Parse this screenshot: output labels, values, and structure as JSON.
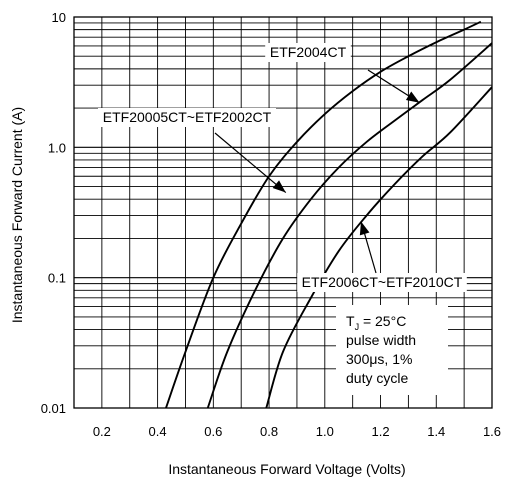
{
  "chart_data": {
    "type": "line",
    "title": "",
    "xlabel": "Instantaneous Forward Voltage (Volts)",
    "ylabel": "Instantaneous Forward Current (A)",
    "xlim": [
      0.1,
      1.6
    ],
    "ylim": [
      0.01,
      10
    ],
    "yscale": "log",
    "grid": true,
    "x_ticks": [
      0.2,
      0.4,
      0.6,
      0.8,
      1.0,
      1.2,
      1.4,
      1.6
    ],
    "x_tick_labels": [
      "0.2",
      "0.4",
      "0.6",
      "0.8",
      "1.0",
      "1.2",
      "1.4",
      "1.6"
    ],
    "y_ticks": [
      0.01,
      0.1,
      1,
      10
    ],
    "y_tick_labels": [
      "0.01",
      "0.1",
      "1.0",
      "10"
    ],
    "series": [
      {
        "name": "ETF20005CT~ETF2002CT",
        "points": [
          [
            0.43,
            0.01
          ],
          [
            0.5,
            0.027
          ],
          [
            0.6,
            0.1
          ],
          [
            0.7,
            0.26
          ],
          [
            0.8,
            0.6
          ],
          [
            0.9,
            1.1
          ],
          [
            1.0,
            1.8
          ],
          [
            1.1,
            2.7
          ],
          [
            1.2,
            3.8
          ],
          [
            1.3,
            5.0
          ],
          [
            1.4,
            6.4
          ],
          [
            1.5,
            8.0
          ],
          [
            1.56,
            9.2
          ]
        ]
      },
      {
        "name": "ETF2004CT",
        "points": [
          [
            0.58,
            0.01
          ],
          [
            0.65,
            0.027
          ],
          [
            0.75,
            0.08
          ],
          [
            0.85,
            0.2
          ],
          [
            0.95,
            0.4
          ],
          [
            1.05,
            0.7
          ],
          [
            1.15,
            1.1
          ],
          [
            1.25,
            1.6
          ],
          [
            1.35,
            2.3
          ],
          [
            1.45,
            3.3
          ],
          [
            1.6,
            6.3
          ]
        ]
      },
      {
        "name": "ETF2006CT~ETF2010CT",
        "points": [
          [
            0.79,
            0.01
          ],
          [
            0.85,
            0.027
          ],
          [
            0.95,
            0.07
          ],
          [
            1.05,
            0.16
          ],
          [
            1.15,
            0.3
          ],
          [
            1.25,
            0.52
          ],
          [
            1.35,
            0.85
          ],
          [
            1.45,
            1.3
          ],
          [
            1.6,
            2.9
          ]
        ]
      }
    ],
    "annotations": [
      {
        "text": "ETF2004CT",
        "series": "ETF2004CT",
        "arrow_to": [
          1.34,
          2.2
        ]
      },
      {
        "text": "ETF20005CT~ETF2002CT",
        "series": "ETF20005CT~ETF2002CT",
        "arrow_to": [
          0.86,
          0.45
        ]
      },
      {
        "text": "ETF2006CT~ETF2010CT",
        "series": "ETF2006CT~ETF2010CT",
        "arrow_to": [
          1.13,
          0.27
        ]
      }
    ],
    "conditions": {
      "tj_symbol": "T",
      "tj_sub": "J",
      "tj_value": " = 25°C",
      "line2": "pulse width",
      "line3": "300μs, 1%",
      "line4": "duty cycle"
    }
  }
}
